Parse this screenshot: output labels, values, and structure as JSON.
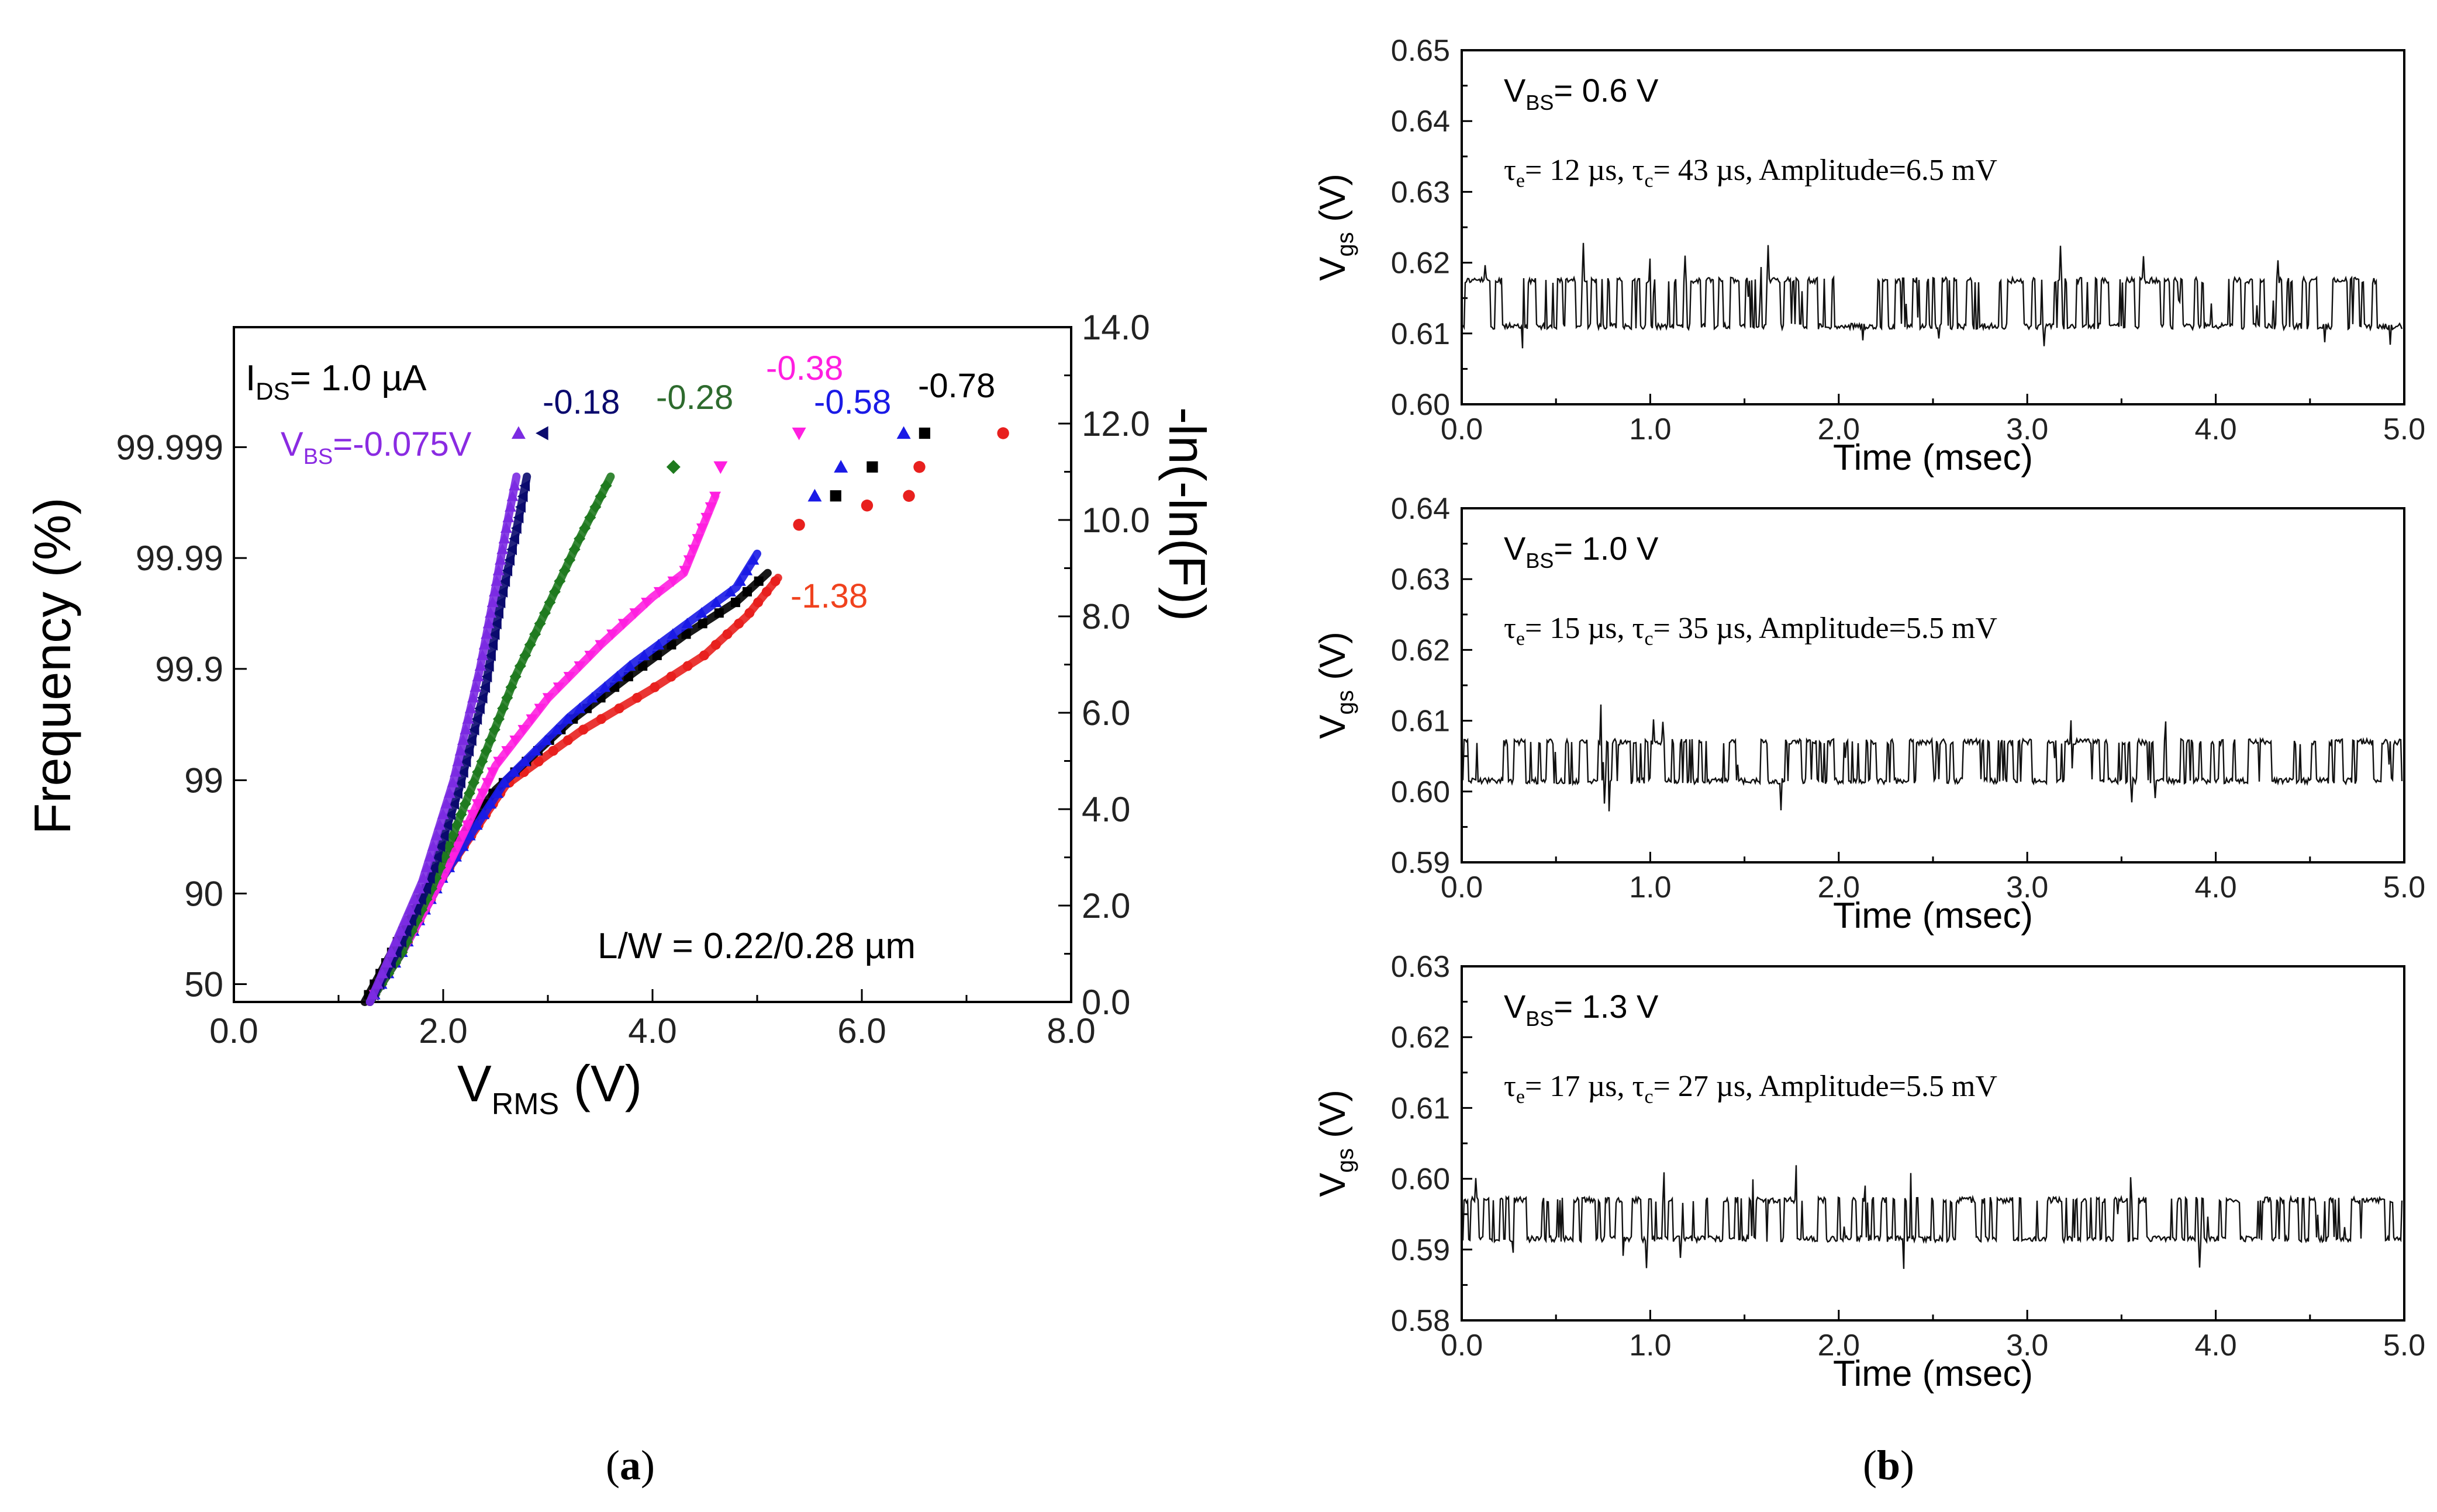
{
  "panel_a": {
    "panel_label_open": "(",
    "panel_label_letter": "a",
    "panel_label_close": ")",
    "annotations": {
      "ids_prefix": "I",
      "ids_sub": "DS",
      "ids_rest": "= 1.0 µA",
      "lw": "L/W = 0.22/0.28 µm",
      "vbs_prefix": "V",
      "vbs_sub": "BS",
      "vbs_rest": "=-0.075V"
    },
    "left_ylabel": "Frequency (%)",
    "right_ylabel": "-ln(-ln(F))",
    "xlabel_main": "V",
    "xlabel_sub": "RMS",
    "xlabel_unit": " (V)"
  },
  "panel_b": {
    "panel_label_open": "(",
    "panel_label_letter": "b",
    "panel_label_close": ")",
    "ylabel_main": "V",
    "ylabel_sub": "gs",
    "ylabel_unit": " (V)",
    "xlabel": "Time (msec)",
    "tau_symbol": "τ",
    "tau_e_sub": "e",
    "tau_c_sub": "c",
    "vbs_prefix": "V",
    "vbs_sub": "BS"
  },
  "chart_data": [
    {
      "type": "scatter",
      "title": "",
      "xlabel": "V_RMS (V)",
      "ylabel": "Frequency (%)",
      "y2label": "-ln(-ln(F))",
      "xlim": [
        0,
        8
      ],
      "ylim": [
        0,
        14
      ],
      "x_ticks": [
        "0.0",
        "2.0",
        "4.0",
        "6.0",
        "8.0"
      ],
      "y2_ticks": [
        "0.0",
        "2.0",
        "4.0",
        "6.0",
        "8.0",
        "10.0",
        "12.0",
        "14.0"
      ],
      "y_percent_ticks": [
        {
          "label": "50",
          "y": 0.37
        },
        {
          "label": "90",
          "y": 2.25
        },
        {
          "label": "99",
          "y": 4.6
        },
        {
          "label": "99.9",
          "y": 6.91
        },
        {
          "label": "99.99",
          "y": 9.21
        },
        {
          "label": "99.999",
          "y": 11.51
        }
      ],
      "series": [
        {
          "name": "-0.075",
          "label": "-0.075V",
          "color": "#7B2BE2",
          "marker": "triangle-up",
          "x": [
            1.3,
            1.5,
            1.8,
            2.1,
            2.35,
            2.5,
            2.6,
            2.7
          ],
          "y": [
            0.0,
            1.0,
            2.5,
            4.6,
            6.9,
            8.6,
            9.8,
            10.9
          ]
        },
        {
          "name": "-0.18",
          "label": "-0.18",
          "color": "#0A0A6E",
          "marker": "triangle-left",
          "x": [
            1.3,
            1.55,
            1.85,
            2.15,
            2.4,
            2.55,
            2.7,
            2.8
          ],
          "y": [
            0.0,
            1.0,
            2.4,
            4.4,
            6.5,
            8.3,
            9.8,
            10.9
          ]
        },
        {
          "name": "-0.28",
          "label": "-0.28",
          "color": "#1F7A1F",
          "marker": "diamond",
          "x": [
            1.3,
            1.6,
            1.9,
            2.3,
            2.7,
            3.0,
            3.3,
            3.6
          ],
          "y": [
            0.0,
            1.0,
            2.4,
            4.6,
            6.8,
            8.2,
            9.6,
            10.9
          ]
        },
        {
          "name": "-0.38",
          "label": "-0.38",
          "color": "#FF1FE0",
          "marker": "triangle-down",
          "x": [
            1.3,
            1.6,
            2.0,
            2.5,
            3.0,
            3.5,
            4.0,
            4.3,
            4.6
          ],
          "y": [
            0.0,
            1.0,
            2.6,
            4.9,
            6.3,
            7.4,
            8.4,
            8.9,
            10.5
          ]
        },
        {
          "name": "-0.58",
          "label": "-0.58",
          "color": "#1A1AE6",
          "marker": "triangle-up",
          "x": [
            1.3,
            1.6,
            2.0,
            2.6,
            3.2,
            3.8,
            4.3,
            4.8,
            5.0
          ],
          "y": [
            0.0,
            1.0,
            2.6,
            4.6,
            5.9,
            7.0,
            7.8,
            8.6,
            9.3
          ]
        },
        {
          "name": "-0.78",
          "label": "-0.78",
          "color": "#000000",
          "marker": "square",
          "x": [
            1.25,
            1.5,
            1.9,
            2.5,
            3.2,
            3.8,
            4.3,
            4.8,
            5.1
          ],
          "y": [
            0.0,
            1.0,
            2.6,
            4.4,
            5.8,
            6.8,
            7.6,
            8.3,
            8.9
          ]
        },
        {
          "name": "-1.38",
          "label": "-1.38",
          "color": "#E8201E",
          "marker": "circle",
          "x": [
            1.3,
            1.6,
            2.0,
            2.6,
            3.3,
            4.0,
            4.5,
            4.9,
            5.2
          ],
          "y": [
            0.0,
            1.0,
            2.6,
            4.5,
            5.6,
            6.5,
            7.2,
            8.0,
            8.8
          ]
        }
      ],
      "extreme_markers": [
        {
          "series": "-0.075",
          "x": 2.72,
          "y": 11.8
        },
        {
          "series": "-0.18",
          "x": 2.95,
          "y": 11.8
        },
        {
          "series": "-0.28",
          "x": 4.2,
          "y": 11.1
        },
        {
          "series": "-0.38",
          "x": 4.65,
          "y": 11.1
        },
        {
          "series": "-0.38",
          "x": 5.4,
          "y": 11.8
        },
        {
          "series": "-0.58",
          "x": 5.55,
          "y": 10.5
        },
        {
          "series": "-0.58",
          "x": 5.8,
          "y": 11.1
        },
        {
          "series": "-0.58",
          "x": 6.4,
          "y": 11.8
        },
        {
          "series": "-0.78",
          "x": 5.75,
          "y": 10.5
        },
        {
          "series": "-0.78",
          "x": 6.1,
          "y": 11.1
        },
        {
          "series": "-0.78",
          "x": 6.6,
          "y": 11.8
        },
        {
          "series": "-1.38",
          "x": 5.4,
          "y": 9.9
        },
        {
          "series": "-1.38",
          "x": 6.05,
          "y": 10.3
        },
        {
          "series": "-1.38",
          "x": 6.45,
          "y": 10.5
        },
        {
          "series": "-1.38",
          "x": 6.55,
          "y": 11.1
        },
        {
          "series": "-1.38",
          "x": 7.35,
          "y": 11.8
        }
      ]
    },
    {
      "type": "line",
      "title": "V_BS= 0.6 V",
      "vbs_rest": "= 0.6 V",
      "xlabel": "Time (msec)",
      "ylabel": "V_gs (V)",
      "xlim": [
        0,
        5
      ],
      "ylim": [
        0.6,
        0.65
      ],
      "x_ticks": [
        "0.0",
        "1.0",
        "2.0",
        "3.0",
        "4.0",
        "5.0"
      ],
      "y_ticks": [
        "0.60",
        "0.61",
        "0.62",
        "0.63",
        "0.64",
        "0.65"
      ],
      "low_level": 0.611,
      "high_level": 0.6175,
      "tau_e_rest": "= 12 µs, ",
      "tau_c_rest": "= 43 µs, Amplitude=6.5 mV",
      "tau_e_us": 12,
      "tau_c_us": 43,
      "amplitude_mV": 6.5
    },
    {
      "type": "line",
      "title": "V_BS= 1.0 V",
      "vbs_rest": "= 1.0 V",
      "xlabel": "Time (msec)",
      "ylabel": "V_gs (V)",
      "xlim": [
        0,
        5
      ],
      "ylim": [
        0.59,
        0.64
      ],
      "x_ticks": [
        "0.0",
        "1.0",
        "2.0",
        "3.0",
        "4.0",
        "5.0"
      ],
      "y_ticks": [
        "0.59",
        "0.60",
        "0.61",
        "0.62",
        "0.63",
        "0.64"
      ],
      "low_level": 0.6015,
      "high_level": 0.607,
      "tau_e_rest": "= 15 µs, ",
      "tau_c_rest": "= 35 µs, Amplitude=5.5 mV",
      "tau_e_us": 15,
      "tau_c_us": 35,
      "amplitude_mV": 5.5
    },
    {
      "type": "line",
      "title": "V_BS= 1.3 V",
      "vbs_rest": "= 1.3 V",
      "xlabel": "Time (msec)",
      "ylabel": "V_gs (V)",
      "xlim": [
        0,
        5
      ],
      "ylim": [
        0.58,
        0.63
      ],
      "x_ticks": [
        "0.0",
        "1.0",
        "2.0",
        "3.0",
        "4.0",
        "5.0"
      ],
      "y_ticks": [
        "0.58",
        "0.59",
        "0.60",
        "0.61",
        "0.62",
        "0.63"
      ],
      "low_level": 0.5915,
      "high_level": 0.597,
      "tau_e_rest": "= 17 µs, ",
      "tau_c_rest": "= 27 µs, Amplitude=5.5 mV",
      "tau_e_us": 17,
      "tau_c_us": 27,
      "amplitude_mV": 5.5
    }
  ]
}
